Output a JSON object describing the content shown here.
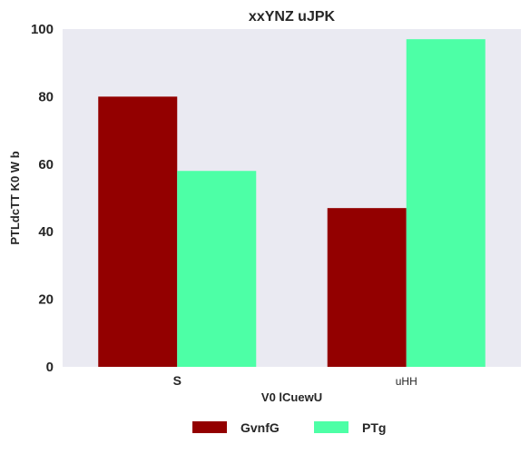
{
  "chart_data": {
    "type": "bar",
    "title": "xxYNZ uJPK",
    "xlabel": "V0 lCuewU",
    "ylabel": "PTLdcTT K0 W b",
    "categories": [
      "S",
      "uHH"
    ],
    "series": [
      {
        "name": "GvnfG",
        "values": [
          80,
          47
        ],
        "color": "#930000"
      },
      {
        "name": "PTg",
        "values": [
          58,
          97
        ],
        "color": "#4dffa6"
      }
    ],
    "ylim": [
      0,
      100
    ],
    "yticks": [
      0,
      20,
      40,
      60,
      80,
      100
    ],
    "grid": false,
    "plot_background": "#eaeaf2",
    "legend_position": "bottom-center"
  }
}
